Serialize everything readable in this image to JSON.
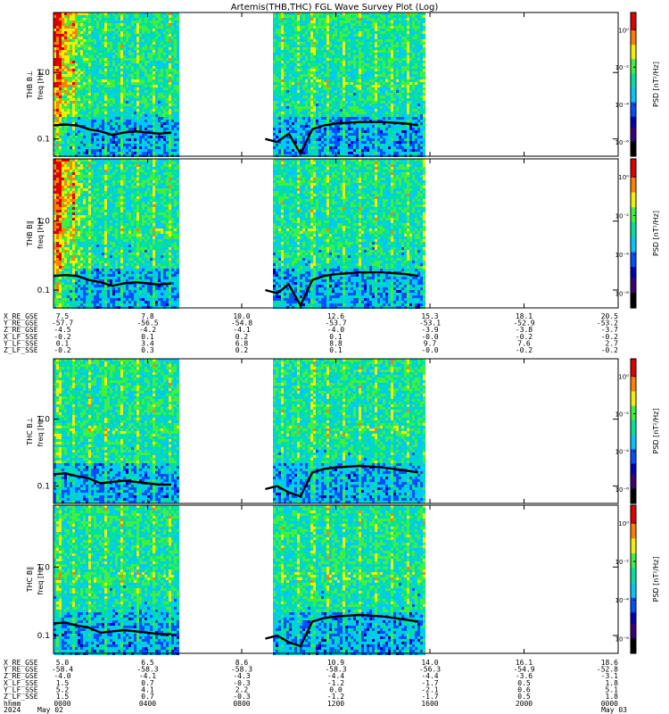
{
  "chart_data": {
    "type": "heatmap",
    "title": "Artemis(THB,THC) FGL Wave Survey Plot (Log)",
    "panels": [
      {
        "probe": "THB",
        "component": "B⊥",
        "ylabel_top": "THB B⊥",
        "ylabel_bottom": "freq [Hz]",
        "cbar_label": "PSD [nT²/Hz]",
        "cbar_ticks": [
          "10⁰",
          "10⁻²",
          "10⁻⁴",
          "10⁻⁶"
        ],
        "yticks": [
          "1.0",
          "0.1"
        ],
        "ylim": [
          0.055,
          8.0
        ],
        "yscale": "log",
        "gyro_profile": [
          {
            "t": 0.0,
            "f": 0.16
          },
          {
            "t": 0.5,
            "f": 0.165
          },
          {
            "t": 1.0,
            "f": 0.16
          },
          {
            "t": 1.5,
            "f": 0.14
          },
          {
            "t": 2.0,
            "f": 0.13
          },
          {
            "t": 2.5,
            "f": 0.115
          },
          {
            "t": 3.0,
            "f": 0.125
          },
          {
            "t": 3.5,
            "f": 0.13
          },
          {
            "t": 4.0,
            "f": 0.125
          },
          {
            "t": 4.5,
            "f": 0.12
          },
          {
            "t": 5.0,
            "f": 0.125
          },
          {
            "t": 9.0,
            "f": 0.1
          },
          {
            "t": 9.5,
            "f": 0.09
          },
          {
            "t": 10.0,
            "f": 0.12
          },
          {
            "t": 10.5,
            "f": 0.06
          },
          {
            "t": 11.0,
            "f": 0.14
          },
          {
            "t": 11.5,
            "f": 0.16
          },
          {
            "t": 12.0,
            "f": 0.17
          },
          {
            "t": 13.0,
            "f": 0.18
          },
          {
            "t": 14.0,
            "f": 0.18
          },
          {
            "t": 15.0,
            "f": 0.17
          },
          {
            "t": 15.5,
            "f": 0.16
          }
        ]
      },
      {
        "probe": "THB",
        "component": "B∥",
        "ylabel_top": "THB B∥",
        "ylabel_bottom": "freq [Hz]",
        "cbar_label": "PSD [nT²/Hz]",
        "cbar_ticks": [
          "10⁰",
          "10⁻²",
          "10⁻⁴",
          "10⁻⁶"
        ],
        "yticks": [
          "1.0",
          "0.1"
        ],
        "ylim": [
          0.055,
          8.0
        ],
        "yscale": "log",
        "gyro_profile": [
          {
            "t": 0.0,
            "f": 0.16
          },
          {
            "t": 0.5,
            "f": 0.165
          },
          {
            "t": 1.0,
            "f": 0.16
          },
          {
            "t": 1.5,
            "f": 0.14
          },
          {
            "t": 2.0,
            "f": 0.13
          },
          {
            "t": 2.5,
            "f": 0.115
          },
          {
            "t": 3.0,
            "f": 0.125
          },
          {
            "t": 3.5,
            "f": 0.13
          },
          {
            "t": 4.0,
            "f": 0.125
          },
          {
            "t": 4.5,
            "f": 0.12
          },
          {
            "t": 5.0,
            "f": 0.125
          },
          {
            "t": 9.0,
            "f": 0.1
          },
          {
            "t": 9.5,
            "f": 0.09
          },
          {
            "t": 10.0,
            "f": 0.12
          },
          {
            "t": 10.5,
            "f": 0.06
          },
          {
            "t": 11.0,
            "f": 0.14
          },
          {
            "t": 11.5,
            "f": 0.16
          },
          {
            "t": 12.0,
            "f": 0.17
          },
          {
            "t": 13.0,
            "f": 0.18
          },
          {
            "t": 14.0,
            "f": 0.18
          },
          {
            "t": 15.0,
            "f": 0.17
          },
          {
            "t": 15.5,
            "f": 0.16
          }
        ]
      },
      {
        "probe": "THC",
        "component": "B⊥",
        "ylabel_top": "THC B⊥",
        "ylabel_bottom": "freq [Hz]",
        "cbar_label": "PSD [nT²/Hz]",
        "cbar_ticks": [
          "10⁰",
          "10⁻²",
          "10⁻⁴",
          "10⁻⁶"
        ],
        "yticks": [
          "1.0",
          "0.1"
        ],
        "ylim": [
          0.055,
          8.0
        ],
        "yscale": "log",
        "gyro_profile": [
          {
            "t": 0.0,
            "f": 0.15
          },
          {
            "t": 0.5,
            "f": 0.155
          },
          {
            "t": 1.0,
            "f": 0.14
          },
          {
            "t": 1.5,
            "f": 0.13
          },
          {
            "t": 2.0,
            "f": 0.11
          },
          {
            "t": 2.5,
            "f": 0.115
          },
          {
            "t": 3.0,
            "f": 0.12
          },
          {
            "t": 3.5,
            "f": 0.115
          },
          {
            "t": 4.0,
            "f": 0.11
          },
          {
            "t": 4.5,
            "f": 0.105
          },
          {
            "t": 5.0,
            "f": 0.105
          },
          {
            "t": 9.0,
            "f": 0.09
          },
          {
            "t": 9.5,
            "f": 0.1
          },
          {
            "t": 10.0,
            "f": 0.08
          },
          {
            "t": 10.5,
            "f": 0.07
          },
          {
            "t": 11.0,
            "f": 0.16
          },
          {
            "t": 11.5,
            "f": 0.18
          },
          {
            "t": 12.0,
            "f": 0.19
          },
          {
            "t": 13.0,
            "f": 0.2
          },
          {
            "t": 14.0,
            "f": 0.19
          },
          {
            "t": 15.0,
            "f": 0.17
          },
          {
            "t": 15.5,
            "f": 0.16
          }
        ]
      },
      {
        "probe": "THC",
        "component": "B∥",
        "ylabel_top": "THC B∥",
        "ylabel_bottom": "freq [Hz]",
        "cbar_label": "PSD [nT²/Hz]",
        "cbar_ticks": [
          "10⁰",
          "10⁻²",
          "10⁻⁴",
          "10⁻⁶"
        ],
        "yticks": [
          "1.0",
          "0.1"
        ],
        "ylim": [
          0.055,
          8.0
        ],
        "yscale": "log",
        "gyro_profile": [
          {
            "t": 0.0,
            "f": 0.15
          },
          {
            "t": 0.5,
            "f": 0.155
          },
          {
            "t": 1.0,
            "f": 0.14
          },
          {
            "t": 1.5,
            "f": 0.13
          },
          {
            "t": 2.0,
            "f": 0.11
          },
          {
            "t": 2.5,
            "f": 0.115
          },
          {
            "t": 3.0,
            "f": 0.12
          },
          {
            "t": 3.5,
            "f": 0.115
          },
          {
            "t": 4.0,
            "f": 0.11
          },
          {
            "t": 4.5,
            "f": 0.105
          },
          {
            "t": 5.0,
            "f": 0.105
          },
          {
            "t": 9.0,
            "f": 0.09
          },
          {
            "t": 9.5,
            "f": 0.1
          },
          {
            "t": 10.0,
            "f": 0.08
          },
          {
            "t": 10.5,
            "f": 0.07
          },
          {
            "t": 11.0,
            "f": 0.16
          },
          {
            "t": 11.5,
            "f": 0.18
          },
          {
            "t": 12.0,
            "f": 0.19
          },
          {
            "t": 13.0,
            "f": 0.2
          },
          {
            "t": 14.0,
            "f": 0.19
          },
          {
            "t": 15.0,
            "f": 0.17
          },
          {
            "t": 15.5,
            "f": 0.16
          }
        ]
      }
    ],
    "x_time_hours": [
      0,
      24
    ],
    "data_gaps_hours": [
      [
        5.3,
        9.3
      ],
      [
        15.8,
        24
      ]
    ],
    "colormap": [
      "#000000",
      "#3c0078",
      "#0000b4",
      "#0050ff",
      "#00c8ff",
      "#00e0a0",
      "#40f040",
      "#f0f000",
      "#ff8000",
      "#e00000"
    ],
    "ephemeris_thb": {
      "tick_hours": [
        0,
        4,
        8,
        12,
        16,
        20,
        24
      ],
      "rows": [
        {
          "label": "X_RE_GSE",
          "values": [
            "7.5",
            "7.8",
            "10.0",
            "12.6",
            "15.3",
            "18.1",
            "20.5"
          ]
        },
        {
          "label": "Y_RE_GSE",
          "values": [
            "-57.7",
            "-56.5",
            "-54.8",
            "-53.7",
            "-53.1",
            "-52.9",
            "-53.2"
          ]
        },
        {
          "label": "Z_RE_GSE",
          "values": [
            "-4.5",
            "-4.2",
            "-4.1",
            "-4.0",
            "-3.9",
            "-3.8",
            "-3.7"
          ]
        },
        {
          "label": "X_LF_SSE",
          "values": [
            "-0.2",
            "0.1",
            "0.2",
            "0.1",
            "-0.0",
            "-0.2",
            "-0.2"
          ]
        },
        {
          "label": "Y_LF_SSE",
          "values": [
            "0.1",
            "3.4",
            "6.8",
            "8.8",
            "9.7",
            "7.6",
            "2.7"
          ]
        },
        {
          "label": "Z_LF_SSE",
          "values": [
            "-0.2",
            "0.3",
            "0.2",
            "0.1",
            "-0.0",
            "-0.2",
            "-0.2"
          ]
        }
      ]
    },
    "ephemeris_thc": {
      "tick_hours": [
        0,
        4,
        8,
        12,
        16,
        20,
        24
      ],
      "rows": [
        {
          "label": "X_RE_GSE",
          "values": [
            "5.0",
            "6.5",
            "8.6",
            "10.9",
            "14.0",
            "16.1",
            "18.6"
          ]
        },
        {
          "label": "Y_RE_GSE",
          "values": [
            "-58.4",
            "-58.3",
            "-58.3",
            "-58.3",
            "-56.3",
            "-54.9",
            "-52.8"
          ]
        },
        {
          "label": "Z_RE_GSE",
          "values": [
            "-4.0",
            "-4.1",
            "-4.3",
            "-4.4",
            "-4.4",
            "-3.6",
            "-3.1"
          ]
        },
        {
          "label": "X_LF_SSE",
          "values": [
            "1.5",
            "0.7",
            "-0.3",
            "-1.2",
            "-1.7",
            "0.5",
            "1.8"
          ]
        },
        {
          "label": "Y_LF_SSE",
          "values": [
            "5.2",
            "4.1",
            "2.2",
            "0.0",
            "-2.1",
            "0.6",
            "5.1"
          ]
        },
        {
          "label": "Z_LF_SSE",
          "values": [
            "1.5",
            "0.7",
            "-0.3",
            "-1.2",
            "-1.7",
            "0.5",
            "1.8"
          ]
        }
      ]
    },
    "time_axis": {
      "hhmm_label": "hhmm",
      "date_label": "2024",
      "hhmm": [
        "0000",
        "0400",
        "0800",
        "1200",
        "1600",
        "2000",
        "0000"
      ],
      "dates": [
        {
          "hour": 0,
          "text": "May 02"
        },
        {
          "hour": 24,
          "text": "May 03"
        }
      ]
    }
  }
}
